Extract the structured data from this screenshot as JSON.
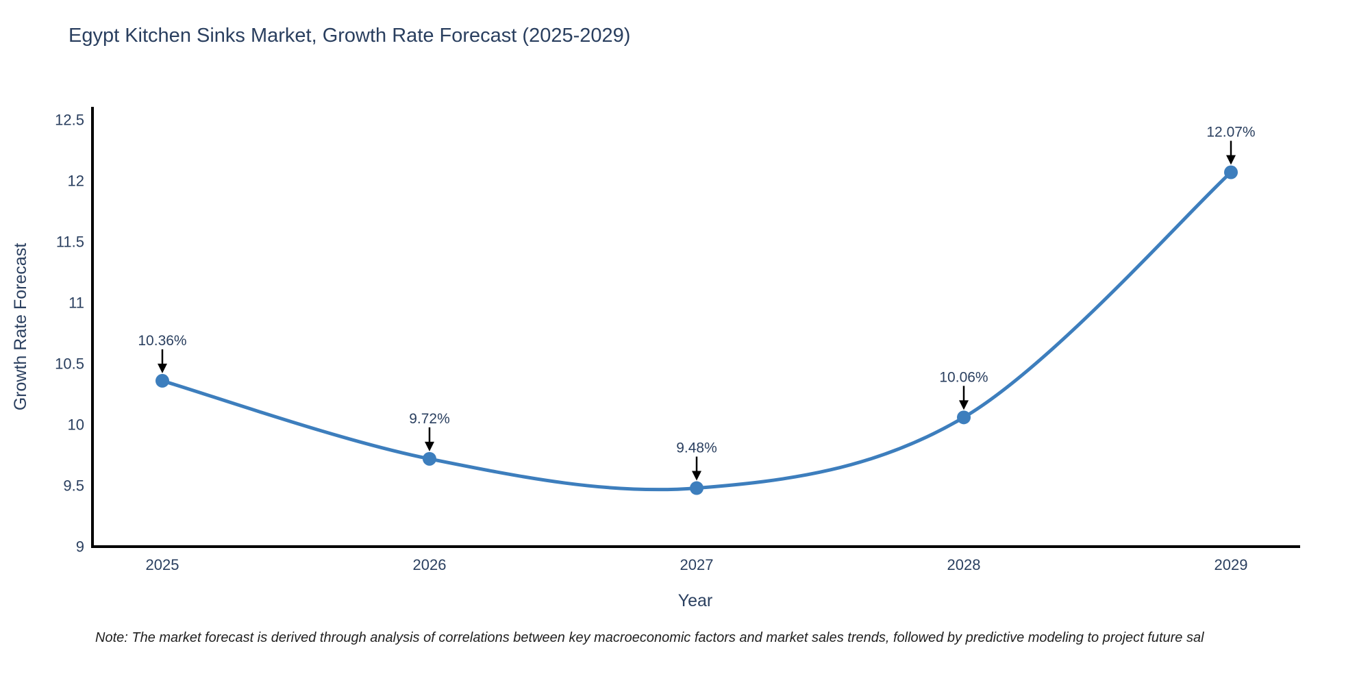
{
  "title": "Egypt Kitchen Sinks Market, Growth Rate Forecast (2025-2029)",
  "note": "Note: The market forecast is derived through analysis of correlations between key macroeconomic factors and market sales trends, followed by predictive modeling to project future sal",
  "chart_data": {
    "type": "line",
    "categories": [
      "2025",
      "2026",
      "2027",
      "2028",
      "2029"
    ],
    "values": [
      10.36,
      9.72,
      9.48,
      10.06,
      12.07
    ],
    "point_labels": [
      "10.36%",
      "9.72%",
      "9.48%",
      "10.06%",
      "12.07%"
    ],
    "title": "Egypt Kitchen Sinks Market, Growth Rate Forecast (2025-2029)",
    "xlabel": "Year",
    "ylabel": "Growth Rate Forecast",
    "ylim": [
      9,
      12.5
    ],
    "y_ticks": [
      9,
      9.5,
      10,
      10.5,
      11,
      11.5,
      12,
      12.5
    ],
    "y_tick_labels": [
      "9",
      "9.5",
      "10",
      "10.5",
      "11",
      "11.5",
      "12",
      "12.5"
    ],
    "x_tick_labels": [
      "2025",
      "2026",
      "2027",
      "2028",
      "2029"
    ],
    "line_style": "spline",
    "grid": false,
    "legend_position": "none",
    "colors": {
      "line": "#3d7ebd",
      "marker": "#3d7ebd",
      "axis": "#000000",
      "text": "#2a3f5f",
      "annotation_arrow": "#000000"
    }
  }
}
